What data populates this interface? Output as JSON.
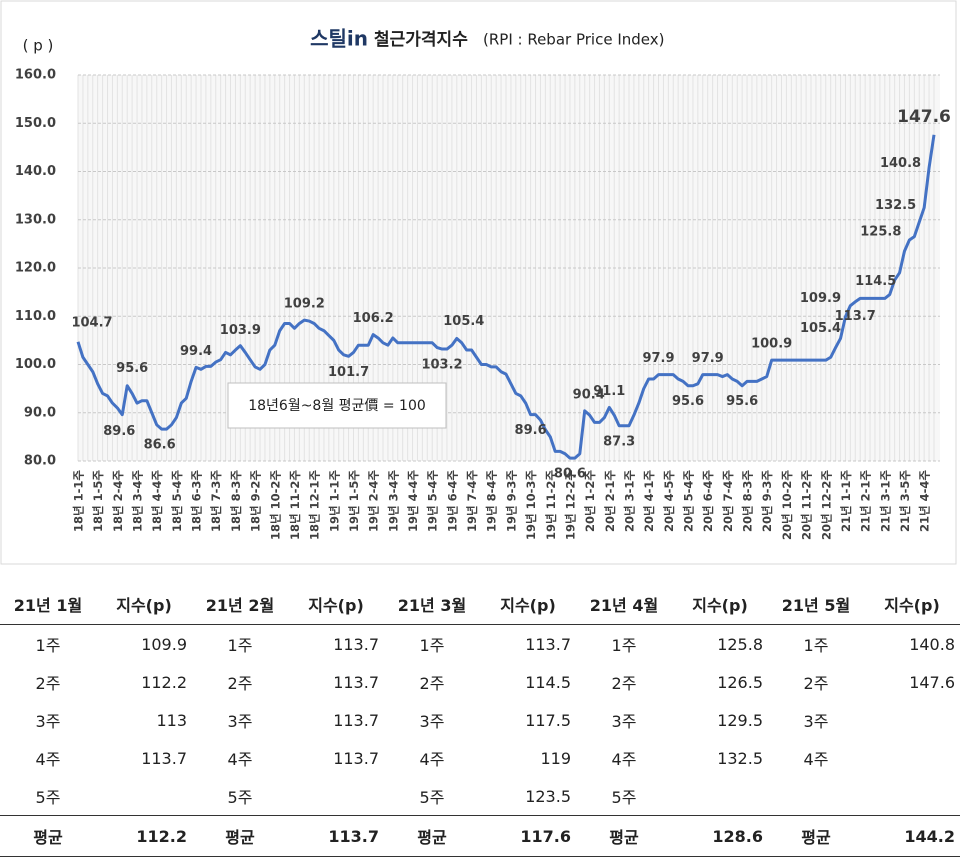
{
  "chart_data": {
    "type": "line",
    "logo": "스틸in",
    "title": "철근가격지수",
    "subtitle": "(RPI : Rebar Price Index)",
    "y_label": "( p )",
    "annotation": "18년6월~8월 평균價 = 100",
    "grid": true,
    "categories": [
      "18년 1-1주",
      null,
      null,
      null,
      "18년 1-5주",
      null,
      null,
      null,
      "18년 2-4주",
      null,
      null,
      null,
      "18년 3-4주",
      null,
      null,
      null,
      "18년 4-4주",
      null,
      null,
      null,
      "18년 5-4주",
      null,
      null,
      null,
      "18년 6-3주",
      null,
      null,
      null,
      "18년 7-3주",
      null,
      null,
      null,
      "18년 8-3주",
      null,
      null,
      null,
      "18년 9-2주",
      null,
      null,
      null,
      "18년 10-2주",
      null,
      null,
      null,
      "18년 11-2주",
      null,
      null,
      null,
      "18년 12-1주",
      null,
      null,
      null,
      "19년 1-1주",
      null,
      null,
      null,
      "19년 1-5주",
      null,
      null,
      null,
      "19년 2-4주",
      null,
      null,
      null,
      "19년 3-4주",
      null,
      null,
      null,
      "19년 4-4주",
      null,
      null,
      null,
      "19년 5-4주",
      null,
      null,
      null,
      "19년 6-4주",
      null,
      null,
      null,
      "19년 7-4주",
      null,
      null,
      null,
      "19년 8-4주",
      null,
      null,
      null,
      "19년 9-3주",
      null,
      null,
      null,
      "19년 10-3주",
      null,
      null,
      null,
      "19년 11-2주",
      null,
      null,
      null,
      "19년 12-2주",
      null,
      null,
      null,
      "20년 1-2주",
      null,
      null,
      null,
      "20년 2-1주",
      null,
      null,
      null,
      "20년 3-1주",
      null,
      null,
      null,
      "20년 4-1주",
      null,
      null,
      null,
      "20년 4-5주",
      null,
      null,
      null,
      "20년 5-4주",
      null,
      null,
      null,
      "20년 6-4주",
      null,
      null,
      null,
      "20년 7-4주",
      null,
      null,
      null,
      "20년 8-3주",
      null,
      null,
      null,
      "20년 9-3주",
      null,
      null,
      null,
      "20년 10-2주",
      null,
      null,
      null,
      "20년 11-2주",
      null,
      null,
      null,
      "20년 12-2주",
      null,
      null,
      null,
      "21년 1-1주",
      null,
      null,
      null,
      "21년 2-1주",
      null,
      null,
      null,
      "21년 3-1주",
      null,
      null,
      null,
      "21년 3-5주",
      null,
      null,
      null,
      "21년 4-4주",
      null,
      null
    ],
    "series": [
      {
        "name": "철근가격지수",
        "color": "#4472c4",
        "values": [
          104.7,
          101.5,
          100,
          98.5,
          96,
          94,
          93.5,
          92,
          91,
          89.6,
          95.6,
          94,
          92,
          92.5,
          92.5,
          90,
          87.5,
          86.6,
          86.6,
          87.5,
          89,
          92,
          93,
          96.5,
          99.4,
          99,
          99.6,
          99.6,
          100.5,
          101,
          102.5,
          102,
          103,
          103.9,
          102.5,
          101,
          99.5,
          99,
          100,
          103,
          104,
          107,
          108.5,
          108.5,
          107.5,
          108.5,
          109.2,
          109,
          108.5,
          107.5,
          107,
          106,
          105,
          103,
          102,
          101.7,
          102.5,
          104,
          104,
          104,
          106.2,
          105.5,
          104.5,
          104,
          105.5,
          104.5,
          104.5,
          104.5,
          104.5,
          104.5,
          104.5,
          104.5,
          104.5,
          103.5,
          103.2,
          103.2,
          104,
          105.4,
          104.5,
          103,
          103,
          101.5,
          100,
          100,
          99.5,
          99.5,
          98.5,
          98,
          96,
          94,
          93.5,
          92,
          89.6,
          89.6,
          88.5,
          86.5,
          85,
          82,
          82,
          81.5,
          80.6,
          80.6,
          81.5,
          90.4,
          89.5,
          88,
          88,
          89,
          91.1,
          89.5,
          87.3,
          87.3,
          87.3,
          89.5,
          92,
          95,
          97,
          97,
          97.9,
          97.9,
          97.9,
          97.9,
          97,
          96.5,
          95.6,
          95.6,
          96,
          97.9,
          97.9,
          97.9,
          97.9,
          97.5,
          97.9,
          97,
          96.5,
          95.6,
          96.5,
          96.5,
          96.5,
          97,
          97.5,
          100.9,
          100.9,
          100.9,
          100.9,
          100.9,
          100.9,
          100.9,
          100.9,
          100.9,
          100.9,
          100.9,
          100.9,
          101.5,
          103.5,
          105.4,
          109.9,
          112.2,
          113,
          113.7,
          113.7,
          113.7,
          113.7,
          113.7,
          113.7,
          114.5,
          117.5,
          119,
          123.5,
          125.8,
          126.5,
          129.5,
          132.5,
          140.8,
          147.6
        ]
      }
    ],
    "ylim": [
      80,
      160
    ],
    "yticks": [
      {
        "value": 80,
        "label": "80.0"
      },
      {
        "value": 90,
        "label": "90.0"
      },
      {
        "value": 100,
        "label": "100.0"
      },
      {
        "value": 110,
        "label": "110.0"
      },
      {
        "value": 120,
        "label": "120.0"
      },
      {
        "value": 130,
        "label": "130.0"
      },
      {
        "value": 140,
        "label": "140.0"
      },
      {
        "value": 150,
        "label": "150.0"
      },
      {
        "value": 160,
        "label": "160.0"
      }
    ]
  },
  "table": {
    "header": [
      "21년 1월",
      "지수(p)",
      "21년 2월",
      "지수(p)",
      "21년 3월",
      "지수(p)",
      "21년 4월",
      "지수(p)",
      "21년 5월",
      "지수(p)"
    ],
    "rows": [
      [
        "1주",
        109.9,
        "1주",
        113.7,
        "1주",
        113.7,
        "1주",
        125.8,
        "1주",
        140.8
      ],
      [
        "2주",
        112.2,
        "2주",
        113.7,
        "2주",
        114.5,
        "2주",
        126.5,
        "2주",
        147.6
      ],
      [
        "3주",
        113,
        "3주",
        113.7,
        "3주",
        117.5,
        "3주",
        129.5,
        "3주",
        null
      ],
      [
        "4주",
        113.7,
        "4주",
        113.7,
        "4주",
        119,
        "4주",
        132.5,
        "4주",
        null
      ],
      [
        "5주",
        null,
        "5주",
        null,
        "5주",
        123.5,
        "5주",
        null,
        null,
        null
      ]
    ],
    "footer": [
      "평균",
      112.2,
      "평균",
      113.7,
      "평균",
      117.6,
      "평균",
      128.6,
      "평균",
      144.2
    ]
  }
}
